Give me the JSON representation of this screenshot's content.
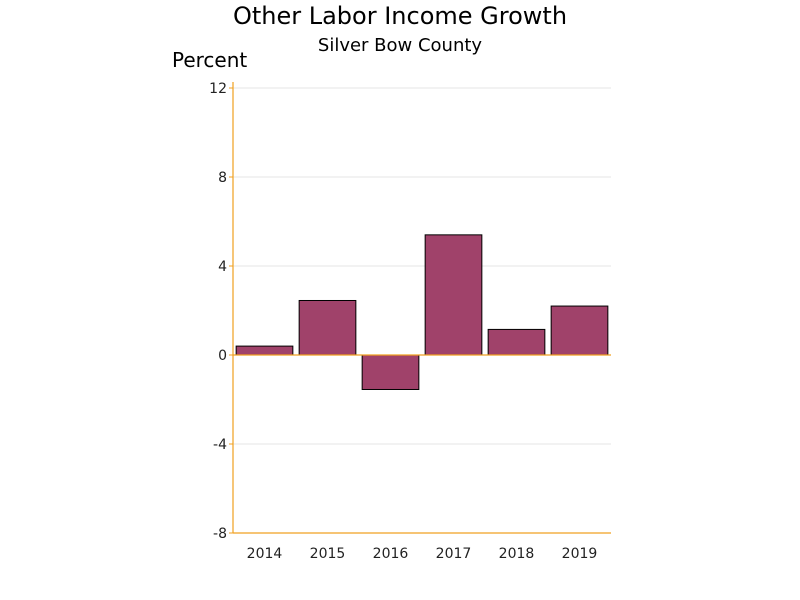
{
  "chart_data": {
    "type": "bar",
    "title": "Other Labor Income Growth",
    "subtitle": "Silver Bow County",
    "ylabel": "Percent",
    "xlabel": "",
    "categories": [
      "2014",
      "2015",
      "2016",
      "2017",
      "2018",
      "2019"
    ],
    "values": [
      0.4,
      2.45,
      -1.55,
      5.4,
      1.15,
      2.2
    ],
    "ylim": [
      -8,
      12
    ],
    "yticks": [
      -8,
      -4,
      0,
      4,
      8,
      12
    ],
    "ytick_labels": [
      "-8",
      "-4",
      "0",
      "4",
      "8",
      "12"
    ],
    "grid": true,
    "legend": "none",
    "bar_color": "#a0426a",
    "axis_color": "#f0a020"
  }
}
